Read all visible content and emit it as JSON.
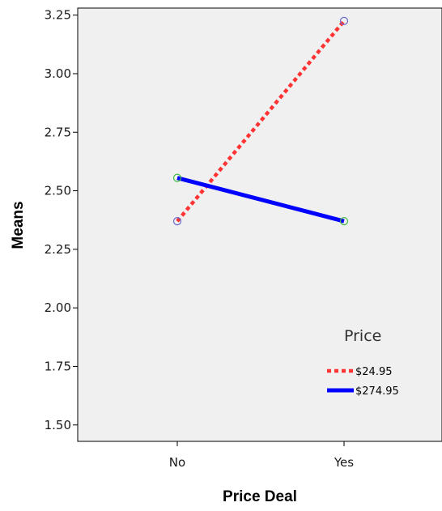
{
  "chart_data": {
    "type": "line",
    "title": "",
    "xlabel": "Price Deal",
    "ylabel": "Means",
    "categories": [
      "No",
      "Yes"
    ],
    "ylim": [
      1.43,
      3.28
    ],
    "yticks": [
      1.5,
      1.75,
      2.0,
      2.25,
      2.5,
      2.75,
      3.0,
      3.25
    ],
    "ytick_labels": [
      "1.50",
      "1.75",
      "2.00",
      "2.25",
      "2.50",
      "2.75",
      "3.00",
      "3.25"
    ],
    "grid": false,
    "background": "#f0f0f0",
    "legend": {
      "title": "Price",
      "position": "bottom-right"
    },
    "series": [
      {
        "name": "$24.95",
        "values": [
          2.37,
          3.225
        ],
        "color": "#ff3333",
        "style": "dotted",
        "marker_color": "#6a6acc"
      },
      {
        "name": "$274.95",
        "values": [
          2.555,
          2.37
        ],
        "color": "#0000ff",
        "style": "solid",
        "marker_color": "#44bb44"
      }
    ]
  }
}
